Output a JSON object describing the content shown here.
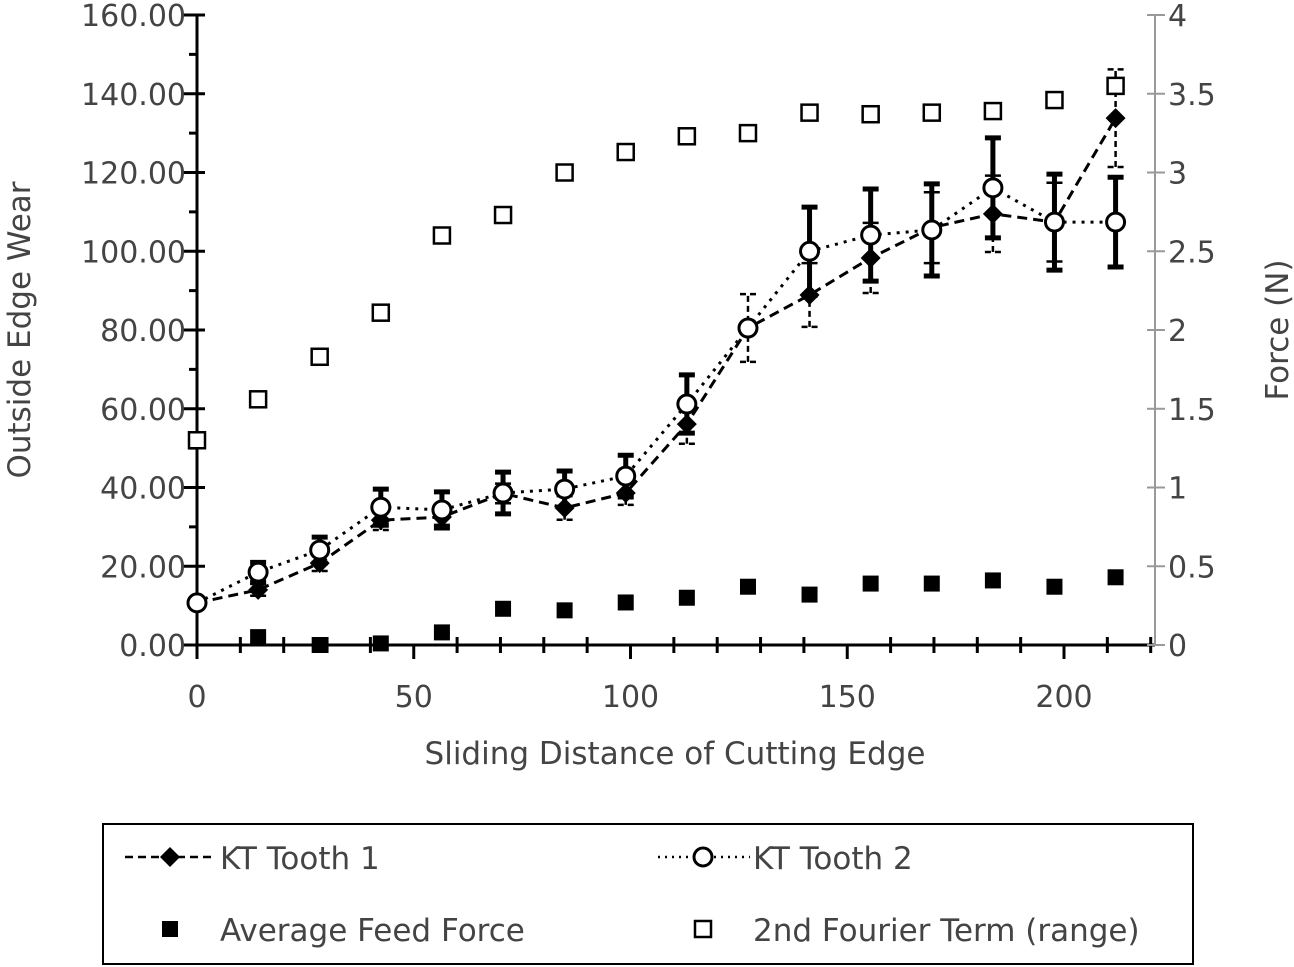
{
  "chart_data": {
    "type": "scatter",
    "title": "",
    "xlabel": "Sliding Distance of Cutting Edge",
    "ylabel": "Outside Edge Wear",
    "y2label": "Force (N)",
    "xlim": [
      0,
      220
    ],
    "ylim": [
      0,
      160
    ],
    "y2lim": [
      0,
      4
    ],
    "xticks": [
      "0",
      "50",
      "100",
      "150",
      "200"
    ],
    "yticks": [
      "0.00",
      "20.00",
      "40.00",
      "60.00",
      "80.00",
      "100.00",
      "120.00",
      "140.00",
      "160.00"
    ],
    "y2ticks": [
      "0",
      "0.5",
      "1",
      "1.5",
      "2",
      "2.5",
      "3",
      "3.5",
      "4"
    ],
    "grid": false,
    "legend_placement": "bottom",
    "x": [
      0,
      14.1,
      28.3,
      42.4,
      56.5,
      70.6,
      84.8,
      98.9,
      113,
      127.1,
      141.3,
      155.4,
      169.5,
      183.6,
      197.8,
      211.9
    ],
    "series": [
      {
        "name": "KT Tooth 1",
        "axis": "left",
        "marker": "filled-diamond",
        "line": "dashed",
        "values": [
          10.7,
          14.0,
          20.8,
          31.7,
          32.5,
          38.5,
          34.8,
          38.6,
          56.1,
          80.5,
          88.9,
          98.3,
          106.0,
          109.5,
          107.4,
          133.8
        ],
        "errors": [
          1.0,
          1.5,
          2.0,
          2.5,
          2.0,
          2.5,
          3.0,
          3.0,
          5.0,
          8.6,
          8.1,
          8.9,
          9.0,
          9.7,
          10.0,
          12.4
        ]
      },
      {
        "name": "KT Tooth 2",
        "axis": "left",
        "marker": "open-circle",
        "line": "dotted",
        "values": [
          10.7,
          18.5,
          24.1,
          35.0,
          34.3,
          38.6,
          39.6,
          42.9,
          61.2,
          80.5,
          100.0,
          104.1,
          105.4,
          116.1,
          107.4,
          107.4
        ],
        "errors": [
          1.0,
          2.5,
          3.3,
          4.6,
          4.6,
          5.3,
          4.6,
          5.3,
          7.4,
          0,
          11.2,
          11.7,
          11.7,
          12.7,
          12.2,
          11.4
        ]
      },
      {
        "name": "Average Feed Force",
        "axis": "right",
        "marker": "filled-square",
        "line": "none",
        "values": [
          null,
          0.05,
          0.0,
          0.01,
          0.08,
          0.23,
          0.22,
          0.27,
          0.3,
          0.37,
          0.32,
          0.39,
          0.39,
          0.41,
          0.37,
          0.43
        ]
      },
      {
        "name": "2nd Fourier Term (range)",
        "axis": "right",
        "marker": "open-square",
        "line": "none",
        "values": [
          1.3,
          1.56,
          1.83,
          2.11,
          2.6,
          2.73,
          3.0,
          3.13,
          3.23,
          3.25,
          3.38,
          3.37,
          3.38,
          3.39,
          3.46,
          3.55
        ]
      }
    ]
  }
}
